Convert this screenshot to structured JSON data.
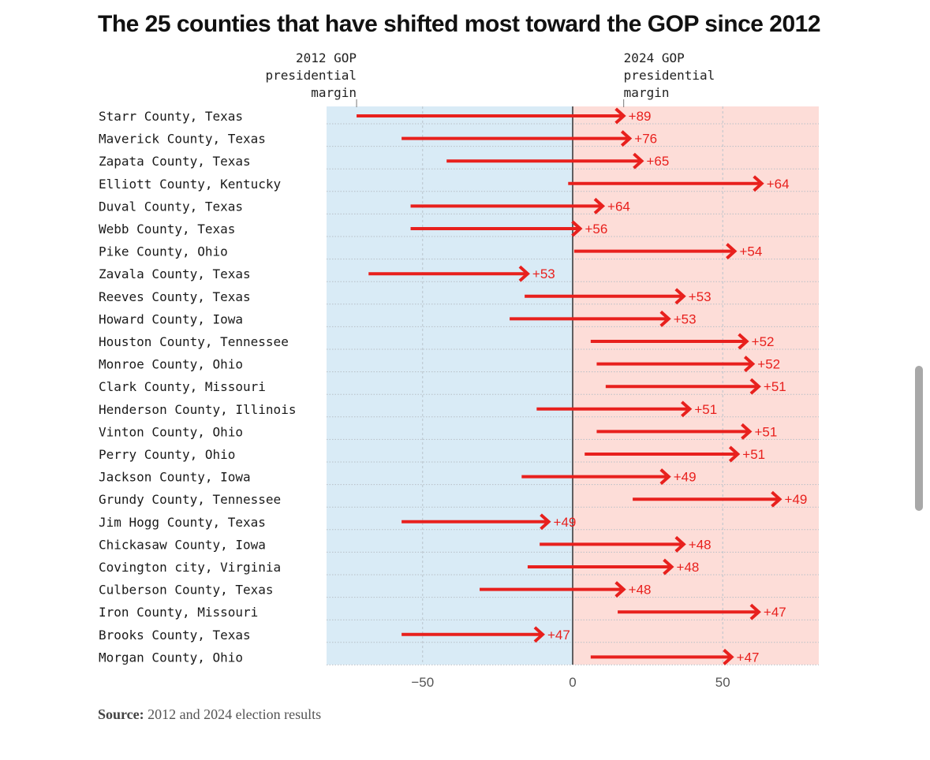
{
  "page": {
    "title": "The 25 counties that have shifted most toward the GOP since 2012",
    "source_label": "Source:",
    "source_text": "2012 and 2024 election results"
  },
  "colors": {
    "dem_bg": "#d9ebf6",
    "gop_bg": "#fdddd8",
    "arrow": "#e8201d",
    "label": "#e8201d",
    "zero_line": "#333333"
  },
  "chart_data": {
    "type": "arrow-range",
    "title": "The 25 counties that have shifted most toward the GOP since 2012",
    "start_label": "2012 GOP presidential margin",
    "end_label": "2024 GOP presidential margin",
    "xlim": [
      -82,
      82
    ],
    "xticks": [
      -50,
      0,
      50
    ],
    "xtick_labels": [
      "−50",
      "0",
      "50"
    ],
    "grid": true,
    "rows": [
      {
        "county": "Starr County, Texas",
        "m2012": -72,
        "m2024": 17,
        "shift": "+89"
      },
      {
        "county": "Maverick County, Texas",
        "m2012": -57,
        "m2024": 19,
        "shift": "+76"
      },
      {
        "county": "Zapata County, Texas",
        "m2012": -42,
        "m2024": 23,
        "shift": "+65"
      },
      {
        "county": "Elliott County, Kentucky",
        "m2012": -1.5,
        "m2024": 63,
        "shift": "+64"
      },
      {
        "county": "Duval County, Texas",
        "m2012": -54,
        "m2024": 10,
        "shift": "+64"
      },
      {
        "county": "Webb County, Texas",
        "m2012": -54,
        "m2024": 2.5,
        "shift": "+56"
      },
      {
        "county": "Pike County, Ohio",
        "m2012": 0.5,
        "m2024": 54,
        "shift": "+54"
      },
      {
        "county": "Zavala County, Texas",
        "m2012": -68,
        "m2024": -15,
        "shift": "+53"
      },
      {
        "county": "Reeves County, Texas",
        "m2012": -16,
        "m2024": 37,
        "shift": "+53"
      },
      {
        "county": "Howard County, Iowa",
        "m2012": -21,
        "m2024": 32,
        "shift": "+53"
      },
      {
        "county": "Houston County, Tennessee",
        "m2012": 6,
        "m2024": 58,
        "shift": "+52"
      },
      {
        "county": "Monroe County, Ohio",
        "m2012": 8,
        "m2024": 60,
        "shift": "+52"
      },
      {
        "county": "Clark County, Missouri",
        "m2012": 11,
        "m2024": 62,
        "shift": "+51"
      },
      {
        "county": "Henderson County, Illinois",
        "m2012": -12,
        "m2024": 39,
        "shift": "+51"
      },
      {
        "county": "Vinton County, Ohio",
        "m2012": 8,
        "m2024": 59,
        "shift": "+51"
      },
      {
        "county": "Perry County, Ohio",
        "m2012": 4,
        "m2024": 55,
        "shift": "+51"
      },
      {
        "county": "Jackson County, Iowa",
        "m2012": -17,
        "m2024": 32,
        "shift": "+49"
      },
      {
        "county": "Grundy County, Tennessee",
        "m2012": 20,
        "m2024": 69,
        "shift": "+49"
      },
      {
        "county": "Jim Hogg County, Texas",
        "m2012": -57,
        "m2024": -8,
        "shift": "+49"
      },
      {
        "county": "Chickasaw County, Iowa",
        "m2012": -11,
        "m2024": 37,
        "shift": "+48"
      },
      {
        "county": "Covington city, Virginia",
        "m2012": -15,
        "m2024": 33,
        "shift": "+48"
      },
      {
        "county": "Culberson County, Texas",
        "m2012": -31,
        "m2024": 17,
        "shift": "+48"
      },
      {
        "county": "Iron County, Missouri",
        "m2012": 15,
        "m2024": 62,
        "shift": "+47"
      },
      {
        "county": "Brooks County, Texas",
        "m2012": -57,
        "m2024": -10,
        "shift": "+47"
      },
      {
        "county": "Morgan County, Ohio",
        "m2012": 6,
        "m2024": 53,
        "shift": "+47"
      }
    ]
  }
}
